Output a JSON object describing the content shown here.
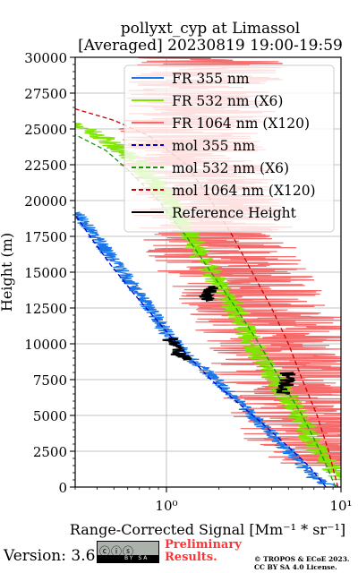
{
  "title_line1": "pollyxt_cyp at Limassol",
  "title_line2": "[Averaged] 20230819 19:00-19:59",
  "footer": {
    "version": "Version: 3.6",
    "license_badge_text": "BY SA",
    "license_badge_glyphs": "ⓒⓘⓢ",
    "preliminary_line1": "Preliminary",
    "preliminary_line2": "Results.",
    "credit_line1": "© TROPOS & ECoE 2023.",
    "credit_line2": "CC BY SA 4.0 License."
  },
  "chart_data": {
    "type": "line",
    "title": "pollyxt_cyp at Limassol [Averaged] 20230819 19:00-19:59",
    "xlabel": "Range-Corrected Signal [Mm⁻¹ * sr⁻¹]",
    "ylabel": "Height (m)",
    "xscale": "log",
    "xlim": [
      0.3,
      10
    ],
    "ylim": [
      0,
      30000
    ],
    "x_major_ticks": [
      1,
      10
    ],
    "x_tick_labels": [
      "10⁰",
      "10¹"
    ],
    "y_ticks": [
      0,
      2500,
      5000,
      7500,
      10000,
      12500,
      15000,
      17500,
      20000,
      22500,
      25000,
      27500,
      30000
    ],
    "grid": true,
    "legend_position": "top-right",
    "legend": [
      "FR 355 nm",
      "FR 532 nm (X6)",
      "FR 1064 nm (X120)",
      "mol 355 nm",
      "mol 532 nm (X6)",
      "mol 1064 nm (X120)",
      "Reference Height"
    ],
    "colors": {
      "fr355": "#1a75e8",
      "fr532": "#7fe600",
      "fr1064": "#f56a6a",
      "mol355": "#0000cc",
      "mol532": "#119911",
      "mol1064": "#cc0000",
      "ref": "#000000"
    },
    "series": [
      {
        "name": "FR 355 nm",
        "style": "solid",
        "color": "#1a75e8",
        "noise": 0.045,
        "points": [
          [
            10,
            100
          ],
          [
            8,
            200
          ],
          [
            7,
            700
          ],
          [
            6,
            1500
          ],
          [
            5,
            2500
          ],
          [
            4,
            3700
          ],
          [
            3.4,
            4500
          ],
          [
            2.5,
            6200
          ],
          [
            1.8,
            7800
          ],
          [
            1.3,
            9200
          ],
          [
            1.0,
            10800
          ],
          [
            0.8,
            12500
          ],
          [
            0.65,
            14000
          ],
          [
            0.5,
            15800
          ],
          [
            0.42,
            17000
          ],
          [
            0.36,
            18000
          ],
          [
            0.3,
            19200
          ]
        ]
      },
      {
        "name": "FR 532 nm (X6)",
        "style": "solid",
        "color": "#7fe600",
        "noise": 0.07,
        "points": [
          [
            10,
            500
          ],
          [
            9.5,
            1000
          ],
          [
            8,
            2000
          ],
          [
            7,
            3000
          ],
          [
            6,
            4500
          ],
          [
            5.2,
            5800
          ],
          [
            4.5,
            7000
          ],
          [
            3.5,
            9000
          ],
          [
            2.8,
            11000
          ],
          [
            2.3,
            13000
          ],
          [
            1.8,
            15000
          ],
          [
            1.45,
            17000
          ],
          [
            1.15,
            19000
          ],
          [
            0.9,
            21000
          ],
          [
            0.7,
            22500
          ],
          [
            0.55,
            23500
          ],
          [
            0.42,
            24500
          ],
          [
            0.35,
            25000
          ],
          [
            0.3,
            25500
          ]
        ]
      },
      {
        "name": "FR 1064 nm (X120)",
        "style": "solid",
        "color": "#f56a6a",
        "noise": 0.45,
        "points": [
          [
            9,
            1500
          ],
          [
            8,
            3000
          ],
          [
            7,
            4500
          ],
          [
            6,
            6000
          ],
          [
            5,
            8000
          ],
          [
            4.5,
            10000
          ],
          [
            3.5,
            12500
          ],
          [
            2.5,
            15000
          ],
          [
            2,
            17000
          ],
          [
            1.8,
            19000
          ],
          [
            1.6,
            21000
          ],
          [
            1.5,
            23000
          ],
          [
            1.5,
            25000
          ],
          [
            1.6,
            27000
          ],
          [
            1.7,
            29000
          ],
          [
            1.8,
            30000
          ]
        ]
      },
      {
        "name": "mol 355 nm",
        "style": "dashed",
        "color": "#0000cc",
        "points": [
          [
            8.2,
            0
          ],
          [
            6.5,
            1500
          ],
          [
            4.8,
            3000
          ],
          [
            3.5,
            4500
          ],
          [
            2.5,
            6000
          ],
          [
            1.8,
            7500
          ],
          [
            1.25,
            9500
          ],
          [
            0.9,
            11500
          ],
          [
            0.65,
            13500
          ],
          [
            0.48,
            15500
          ],
          [
            0.38,
            17200
          ],
          [
            0.3,
            19000
          ]
        ]
      },
      {
        "name": "mol 532 nm (X6)",
        "style": "dashed",
        "color": "#119911",
        "points": [
          [
            9.3,
            0
          ],
          [
            7.6,
            2500
          ],
          [
            6,
            5000
          ],
          [
            4.5,
            7500
          ],
          [
            3.4,
            10000
          ],
          [
            2.5,
            12500
          ],
          [
            1.8,
            15000
          ],
          [
            1.3,
            17500
          ],
          [
            0.9,
            20000
          ],
          [
            0.62,
            22000
          ],
          [
            0.45,
            23500
          ],
          [
            0.3,
            24600
          ]
        ]
      },
      {
        "name": "mol 1064 nm (X120)",
        "style": "dashed",
        "color": "#cc0000",
        "points": [
          [
            9.6,
            0
          ],
          [
            8.5,
            2500
          ],
          [
            7.3,
            5000
          ],
          [
            6,
            7500
          ],
          [
            5,
            10000
          ],
          [
            4,
            12500
          ],
          [
            3.1,
            15000
          ],
          [
            2.4,
            17500
          ],
          [
            1.8,
            20000
          ],
          [
            1.3,
            22500
          ],
          [
            0.8,
            24500
          ],
          [
            0.5,
            25600
          ],
          [
            0.3,
            26400
          ]
        ]
      },
      {
        "name": "Reference Height",
        "style": "solid",
        "color": "#000000",
        "width": 2,
        "noise": 0.05,
        "segments": [
          [
            [
              1.05,
              10400
            ],
            [
              1.1,
              9700
            ],
            [
              1.2,
              9200
            ],
            [
              1.25,
              8900
            ]
          ],
          [
            [
              1.65,
              13000
            ],
            [
              1.75,
              13500
            ],
            [
              1.78,
              14000
            ]
          ],
          [
            [
              4.7,
              6500
            ],
            [
              4.8,
              7000
            ],
            [
              4.9,
              7500
            ],
            [
              5.0,
              8000
            ]
          ]
        ]
      }
    ]
  }
}
